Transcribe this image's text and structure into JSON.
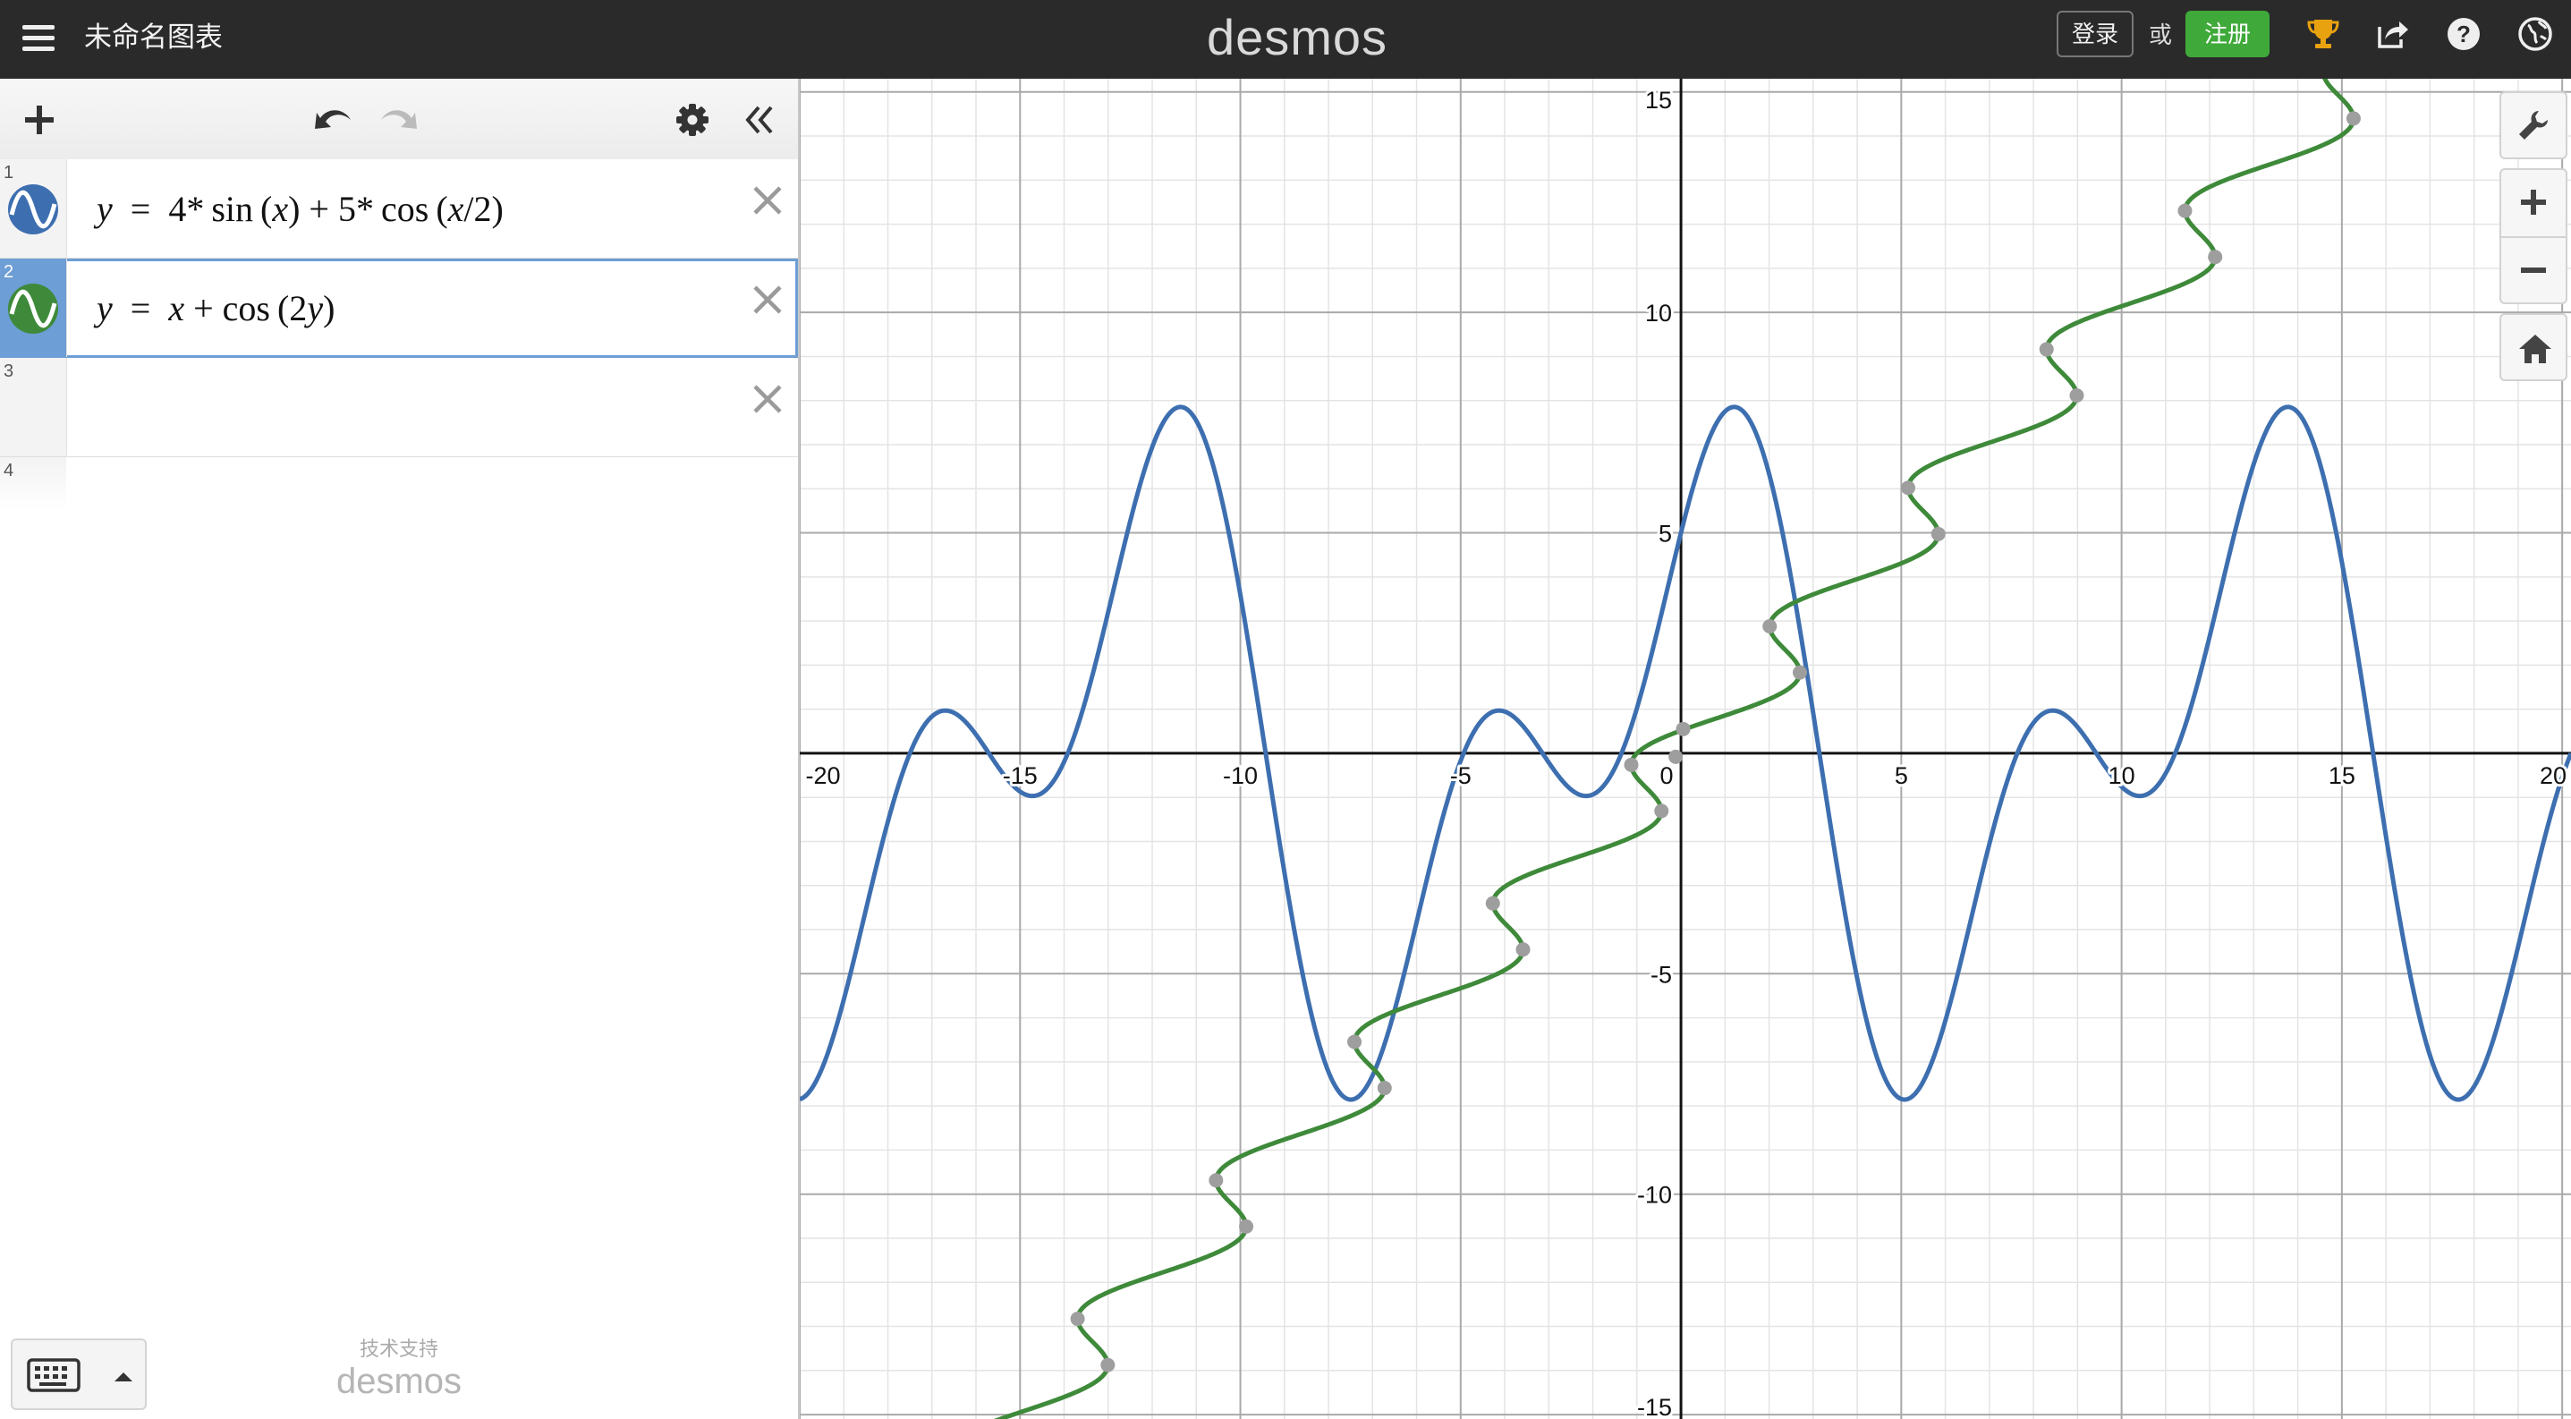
{
  "header": {
    "title": "未命名图表",
    "logo": "desmos",
    "login_label": "登录",
    "or_label": "或",
    "signup_label": "注册",
    "icons": [
      "menu-icon",
      "trophy-icon",
      "share-icon",
      "help-icon",
      "globe-icon"
    ],
    "signup_color": "#3fa93a"
  },
  "expressions": [
    {
      "index": "1",
      "latex": "y = 4*sin(x) + 5*cos(x/2)",
      "color": "#3d6fb0",
      "icon": "wave-icon"
    },
    {
      "index": "2",
      "latex": "y = x + cos(2y)",
      "color": "#3e8a3a",
      "icon": "wave-icon",
      "selected": true
    },
    {
      "index": "3",
      "latex": ""
    },
    {
      "index": "4",
      "latex": ""
    }
  ],
  "footer": {
    "powered_caption": "技术支持",
    "powered_name": "desmos"
  },
  "graph": {
    "x_range": [
      -20,
      20.2
    ],
    "y_range": [
      -15.1,
      15.3
    ],
    "major_step": 5,
    "minor_step": 1,
    "x_tick_labels": [
      "-20",
      "-15",
      "-10",
      "-5",
      "0",
      "5",
      "10",
      "15",
      "20"
    ],
    "y_tick_labels": [
      "15",
      "10",
      "5",
      "-5",
      "-10",
      "-15"
    ],
    "grid": true,
    "tools": [
      "wrench-icon",
      "zoom-in-icon",
      "zoom-out-icon",
      "home-icon"
    ]
  }
}
